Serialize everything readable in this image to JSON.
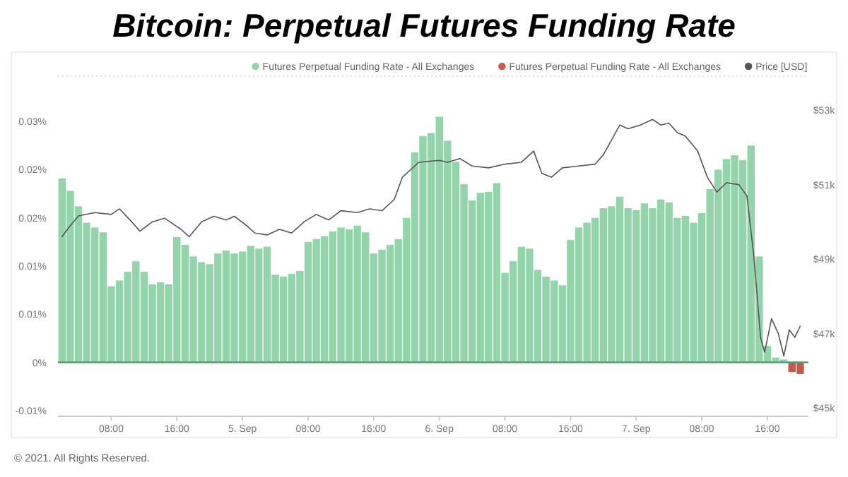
{
  "chart_data": {
    "type": "bar",
    "title": "Bitcoin: Perpetual Futures Funding Rate",
    "legend": "top right",
    "ref_lines": [
      {
        "axis": "y",
        "value": 0,
        "color": "#5a9a6e"
      }
    ],
    "annotations": [
      "© 2021. All Rights Reserved."
    ],
    "x": [
      "2021-09-04T02:00",
      "2021-09-04T03:00",
      "2021-09-04T04:00",
      "2021-09-04T05:00",
      "2021-09-04T06:00",
      "2021-09-04T07:00",
      "2021-09-04T08:00",
      "2021-09-04T09:00",
      "2021-09-04T10:00",
      "2021-09-04T11:00",
      "2021-09-04T12:00",
      "2021-09-04T13:00",
      "2021-09-04T14:00",
      "2021-09-04T15:00",
      "2021-09-04T16:00",
      "2021-09-04T17:00",
      "2021-09-04T18:00",
      "2021-09-04T19:00",
      "2021-09-04T20:00",
      "2021-09-04T21:00",
      "2021-09-04T22:00",
      "2021-09-04T23:00",
      "2021-09-05T00:00",
      "2021-09-05T01:00",
      "2021-09-05T02:00",
      "2021-09-05T03:00",
      "2021-09-05T04:00",
      "2021-09-05T05:00",
      "2021-09-05T06:00",
      "2021-09-05T07:00",
      "2021-09-05T08:00",
      "2021-09-05T09:00",
      "2021-09-05T10:00",
      "2021-09-05T11:00",
      "2021-09-05T12:00",
      "2021-09-05T13:00",
      "2021-09-05T14:00",
      "2021-09-05T15:00",
      "2021-09-05T16:00",
      "2021-09-05T17:00",
      "2021-09-05T18:00",
      "2021-09-05T19:00",
      "2021-09-05T20:00",
      "2021-09-05T21:00",
      "2021-09-05T22:00",
      "2021-09-05T23:00",
      "2021-09-06T00:00",
      "2021-09-06T01:00",
      "2021-09-06T02:00",
      "2021-09-06T03:00",
      "2021-09-06T04:00",
      "2021-09-06T05:00",
      "2021-09-06T06:00",
      "2021-09-06T07:00",
      "2021-09-06T08:00",
      "2021-09-06T09:00",
      "2021-09-06T10:00",
      "2021-09-06T11:00",
      "2021-09-06T12:00",
      "2021-09-06T13:00",
      "2021-09-06T14:00",
      "2021-09-06T15:00",
      "2021-09-06T16:00",
      "2021-09-06T17:00",
      "2021-09-06T18:00",
      "2021-09-06T19:00",
      "2021-09-06T20:00",
      "2021-09-06T21:00",
      "2021-09-06T22:00",
      "2021-09-06T23:00",
      "2021-09-07T00:00",
      "2021-09-07T01:00",
      "2021-09-07T02:00",
      "2021-09-07T03:00",
      "2021-09-07T04:00",
      "2021-09-07T05:00",
      "2021-09-07T06:00",
      "2021-09-07T07:00",
      "2021-09-07T08:00",
      "2021-09-07T09:00",
      "2021-09-07T10:00",
      "2021-09-07T11:00",
      "2021-09-07T12:00",
      "2021-09-07T13:00",
      "2021-09-07T14:00",
      "2021-09-07T15:00",
      "2021-09-07T16:00",
      "2021-09-07T17:00",
      "2021-09-07T18:00",
      "2021-09-07T19:00",
      "2021-09-07T20:00"
    ],
    "xlim": [
      "2021-09-04T01:30",
      "2021-09-07T21:00"
    ],
    "xticks": [
      {
        "value": "2021-09-04T08:00",
        "label": "08:00"
      },
      {
        "value": "2021-09-04T16:00",
        "label": "16:00"
      },
      {
        "value": "2021-09-05T00:00",
        "label": "5. Sep"
      },
      {
        "value": "2021-09-05T08:00",
        "label": "08:00"
      },
      {
        "value": "2021-09-05T16:00",
        "label": "16:00"
      },
      {
        "value": "2021-09-06T00:00",
        "label": "6. Sep"
      },
      {
        "value": "2021-09-06T08:00",
        "label": "08:00"
      },
      {
        "value": "2021-09-06T16:00",
        "label": "16:00"
      },
      {
        "value": "2021-09-07T00:00",
        "label": "7. Sep"
      },
      {
        "value": "2021-09-07T08:00",
        "label": "08:00"
      },
      {
        "value": "2021-09-07T16:00",
        "label": "16:00"
      }
    ],
    "ylim": [
      -0.0056,
      0.0297
    ],
    "yticks": [
      {
        "value": -0.005,
        "label": "-0.01%"
      },
      {
        "value": 0,
        "label": "0%"
      },
      {
        "value": 0.005,
        "label": "0.01%"
      },
      {
        "value": 0.01,
        "label": "0.01%"
      },
      {
        "value": 0.015,
        "label": "0.02%"
      },
      {
        "value": 0.02,
        "label": "0.02%"
      },
      {
        "value": 0.025,
        "label": "0.03%"
      }
    ],
    "y2lim": [
      44780,
      53910
    ],
    "y2ticks": [
      {
        "value": 45000,
        "label": "$45k"
      },
      {
        "value": 47000,
        "label": "$47k"
      },
      {
        "value": 49000,
        "label": "$49k"
      },
      {
        "value": 51000,
        "label": "$51k"
      },
      {
        "value": 53000,
        "label": "$53k"
      }
    ],
    "series": [
      {
        "name": "Futures Perpetual Funding Rate - All Exchanges",
        "color": "#93d4ab",
        "values": [
          0.0191,
          0.0178,
          0.0162,
          0.0145,
          0.014,
          0.0135,
          0.0079,
          0.0085,
          0.0094,
          0.0105,
          0.0094,
          0.0081,
          0.0083,
          0.0081,
          0.013,
          0.0122,
          0.011,
          0.0104,
          0.0102,
          0.0113,
          0.0116,
          0.0113,
          0.0115,
          0.0121,
          0.0118,
          0.012,
          0.0091,
          0.0089,
          0.0092,
          0.0095,
          0.0125,
          0.0128,
          0.0131,
          0.0136,
          0.014,
          0.0138,
          0.0142,
          0.0135,
          0.0113,
          0.0117,
          0.0122,
          0.0128,
          0.015,
          0.0218,
          0.0235,
          0.0238,
          0.0255,
          0.023,
          0.0208,
          0.0185,
          0.0168,
          0.0176,
          0.0177,
          0.0186,
          0.0093,
          0.0105,
          0.012,
          0.0118,
          0.0096,
          0.0089,
          0.0085,
          0.008,
          0.0127,
          0.014,
          0.0145,
          0.015,
          0.016,
          0.0162,
          0.0172,
          0.016,
          0.0158,
          0.0165,
          0.016,
          0.0169,
          0.0166,
          0.015,
          0.0152,
          0.0145,
          0.0155,
          0.018,
          0.02,
          0.0211,
          0.0215,
          0.021,
          0.0225,
          0.011,
          0.0017,
          0.0005,
          0.0003,
          null,
          null
        ]
      },
      {
        "name": "Futures Perpetual Funding Rate - All Exchanges",
        "color": "#c9574a",
        "values": [
          null,
          null,
          null,
          null,
          null,
          null,
          null,
          null,
          null,
          null,
          null,
          null,
          null,
          null,
          null,
          null,
          null,
          null,
          null,
          null,
          null,
          null,
          null,
          null,
          null,
          null,
          null,
          null,
          null,
          null,
          null,
          null,
          null,
          null,
          null,
          null,
          null,
          null,
          null,
          null,
          null,
          null,
          null,
          null,
          null,
          null,
          null,
          null,
          null,
          null,
          null,
          null,
          null,
          null,
          null,
          null,
          null,
          null,
          null,
          null,
          null,
          null,
          null,
          null,
          null,
          null,
          null,
          null,
          null,
          null,
          null,
          null,
          null,
          null,
          null,
          null,
          null,
          null,
          null,
          null,
          null,
          null,
          null,
          null,
          null,
          null,
          null,
          null,
          null,
          -0.001,
          -0.0012
        ]
      },
      {
        "type": "line",
        "name": "Price [USD]",
        "color": "#555555",
        "axis": "y2",
        "x": [
          "2021-09-04T02:00",
          "2021-09-04T03:00",
          "2021-09-04T04:00",
          "2021-09-04T06:00",
          "2021-09-04T08:00",
          "2021-09-04T09:00",
          "2021-09-04T10:30",
          "2021-09-04T11:30",
          "2021-09-04T13:00",
          "2021-09-04T14:30",
          "2021-09-04T16:30",
          "2021-09-04T17:30",
          "2021-09-04T19:00",
          "2021-09-04T20:30",
          "2021-09-04T22:00",
          "2021-09-04T23:00",
          "2021-09-05T00:30",
          "2021-09-05T01:30",
          "2021-09-05T03:00",
          "2021-09-05T04:30",
          "2021-09-05T06:00",
          "2021-09-05T07:30",
          "2021-09-05T09:00",
          "2021-09-05T10:30",
          "2021-09-05T12:00",
          "2021-09-05T14:00",
          "2021-09-05T15:30",
          "2021-09-05T17:00",
          "2021-09-05T18:30",
          "2021-09-05T19:30",
          "2021-09-05T20:30",
          "2021-09-05T21:30",
          "2021-09-06T00:00",
          "2021-09-06T01:00",
          "2021-09-06T02:30",
          "2021-09-06T04:00",
          "2021-09-06T06:00",
          "2021-09-06T08:00",
          "2021-09-06T10:00",
          "2021-09-06T11:30",
          "2021-09-06T12:30",
          "2021-09-06T13:40",
          "2021-09-06T15:00",
          "2021-09-06T17:00",
          "2021-09-06T19:00",
          "2021-09-06T20:00",
          "2021-09-06T21:00",
          "2021-09-06T22:00",
          "2021-09-06T23:00",
          "2021-09-07T00:30",
          "2021-09-07T02:00",
          "2021-09-07T03:00",
          "2021-09-07T04:00",
          "2021-09-07T05:00",
          "2021-09-07T06:00",
          "2021-09-07T07:30",
          "2021-09-07T08:40",
          "2021-09-07T09:50",
          "2021-09-07T11:00",
          "2021-09-07T12:30",
          "2021-09-07T13:30",
          "2021-09-07T14:20",
          "2021-09-07T15:10",
          "2021-09-07T15:40",
          "2021-09-07T16:30",
          "2021-09-07T17:20",
          "2021-09-07T18:00",
          "2021-09-07T18:40",
          "2021-09-07T19:20",
          "2021-09-07T20:00"
        ],
        "values": [
          49600,
          49900,
          50160,
          50250,
          50200,
          50350,
          50000,
          49750,
          50000,
          50100,
          49800,
          49600,
          50000,
          50150,
          50050,
          50150,
          49900,
          49700,
          49650,
          49800,
          49700,
          50000,
          50200,
          50050,
          50300,
          50250,
          50350,
          50300,
          50600,
          51200,
          51400,
          51600,
          51650,
          51600,
          51700,
          51500,
          51450,
          51550,
          51600,
          51900,
          51300,
          51200,
          51450,
          51500,
          51550,
          51800,
          52200,
          52600,
          52500,
          52600,
          52750,
          52600,
          52650,
          52400,
          52300,
          51900,
          51200,
          50800,
          51050,
          51000,
          50700,
          49100,
          46900,
          46500,
          47400,
          47000,
          46400,
          47100,
          46900,
          47200
        ]
      }
    ]
  }
}
